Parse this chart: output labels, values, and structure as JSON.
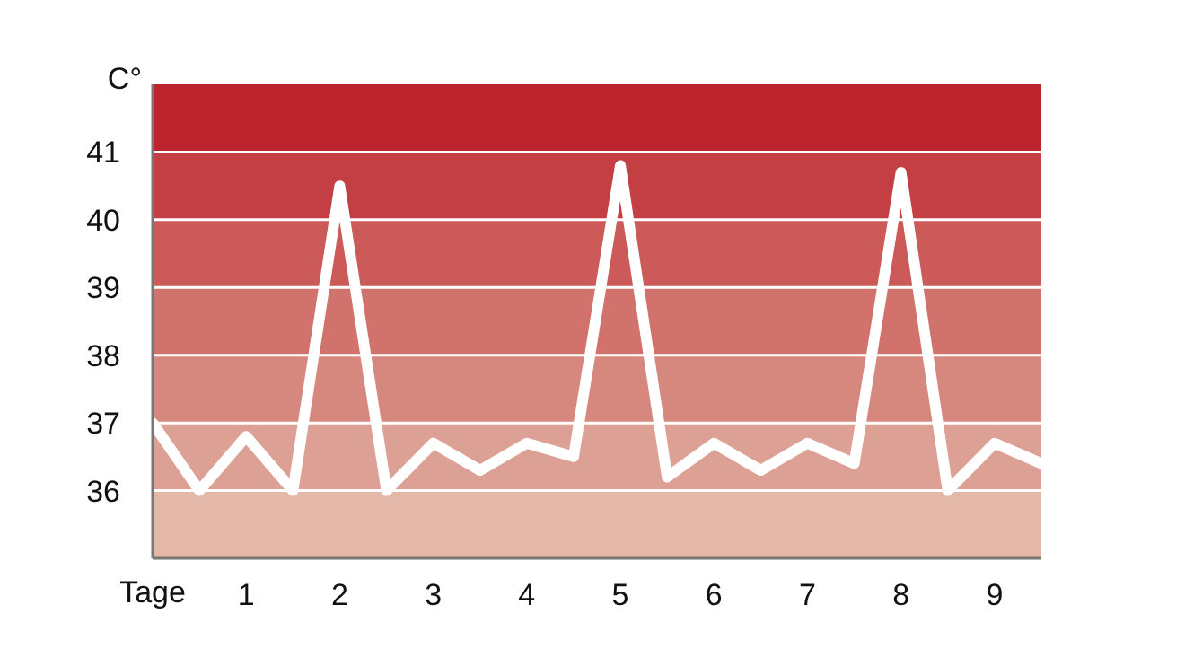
{
  "chart_data": {
    "type": "line",
    "xlabel": "Tage",
    "ylabel": "C°",
    "x": [
      0,
      0.5,
      1,
      1.5,
      2,
      2.5,
      3,
      3.5,
      4,
      4.5,
      5,
      5.5,
      6,
      6.5,
      7,
      7.5,
      8,
      8.5,
      9,
      9.5
    ],
    "series": [
      {
        "color": "#ffffff",
        "values": [
          37.0,
          36.0,
          36.8,
          36.0,
          40.5,
          36.0,
          36.7,
          36.3,
          36.7,
          36.5,
          40.8,
          36.2,
          36.7,
          36.3,
          36.7,
          36.4,
          40.7,
          36.0,
          36.7,
          36.4
        ]
      }
    ],
    "xlim": [
      0,
      9.5
    ],
    "xticks": [
      1,
      2,
      3,
      4,
      5,
      6,
      7,
      8,
      9
    ],
    "ylim": [
      35,
      42
    ],
    "yticks": [
      36,
      37,
      38,
      39,
      40,
      41
    ],
    "bands": [
      {
        "axis": "y",
        "from": 35,
        "to": 36,
        "color": "#e3b8a8"
      },
      {
        "axis": "y",
        "from": 36,
        "to": 37,
        "color": "#dca095"
      },
      {
        "axis": "y",
        "from": 37,
        "to": 38,
        "color": "#d7887e"
      },
      {
        "axis": "y",
        "from": 38,
        "to": 39,
        "color": "#d1736c"
      },
      {
        "axis": "y",
        "from": 39,
        "to": 40,
        "color": "#cb5a58"
      },
      {
        "axis": "y",
        "from": 40,
        "to": 41,
        "color": "#c43f43"
      },
      {
        "axis": "y",
        "from": 41,
        "to": 42,
        "color": "#bd252e"
      }
    ],
    "grid": "y",
    "legend": false,
    "marker": "none",
    "line_style": "solid"
  }
}
